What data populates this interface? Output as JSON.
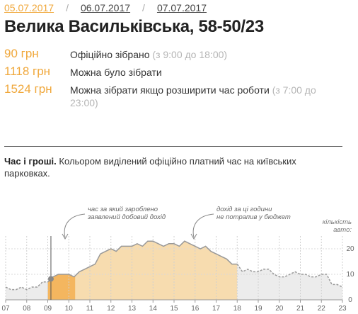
{
  "dates": {
    "active": "05.07.2017",
    "links": [
      "06.07.2017",
      "07.07.2017"
    ],
    "separator": "/"
  },
  "title": "Велика Васильківська, 58-50/23",
  "stats": [
    {
      "amount": "90 грн",
      "label": "Офіційно зібрано",
      "note": "(з 9:00 до 18:00)"
    },
    {
      "amount": "1118 грн",
      "label": "Можна було зібрати",
      "note": ""
    },
    {
      "amount": "1524 грн",
      "label": "Можна зібрати якщо розширити час роботи",
      "note": "(з 7:00 до 23:00)"
    }
  ],
  "caption": {
    "bold": "Час і гроші.",
    "text": "Кольором виділений офіційно платний час на київських парковках."
  },
  "colors": {
    "accent": "#f0a83c",
    "paid_fill": "#f7dcaf",
    "reported_fill": "#f4b65f",
    "offhours_fill": "#ececec",
    "line": "#999999"
  },
  "chart_data": {
    "type": "area",
    "x_ticks": [
      "07",
      "08",
      "09",
      "10",
      "11",
      "12",
      "13",
      "14",
      "15",
      "16",
      "17",
      "18",
      "19",
      "20",
      "21",
      "22",
      "23"
    ],
    "xlim": [
      7,
      23
    ],
    "y_ticks": [
      "20",
      "10",
      "0"
    ],
    "ylim": [
      0,
      25
    ],
    "ylabel_lines": [
      "кількість",
      "авто:"
    ],
    "paid_hours": [
      9,
      18
    ],
    "reported_hours": [
      9,
      10.3
    ],
    "cursor_hour": 9.15,
    "annotations": [
      {
        "lines": [
          "час за який зароблено",
          "заявлений добовий дохід"
        ]
      },
      {
        "lines": [
          "дохід за ці години",
          "не потрапив у бюджет"
        ]
      }
    ],
    "series": [
      {
        "x": [
          7.0,
          7.25,
          7.5,
          7.75,
          8.0,
          8.25,
          8.5,
          8.75,
          9.0,
          9.25,
          9.5,
          9.75,
          10.0,
          10.25,
          10.5,
          10.75,
          11.0,
          11.25,
          11.5,
          11.75,
          12.0,
          12.25,
          12.5,
          12.75,
          13.0,
          13.25,
          13.5,
          13.75,
          14.0,
          14.25,
          14.5,
          14.75,
          15.0,
          15.25,
          15.5,
          15.75,
          16.0,
          16.25,
          16.5,
          16.75,
          17.0,
          17.25,
          17.5,
          17.75,
          18.0,
          18.25,
          18.5,
          18.75,
          19.0,
          19.25,
          19.5,
          19.75,
          20.0,
          20.25,
          20.5,
          20.75,
          21.0,
          21.25,
          21.5,
          21.75,
          22.0,
          22.25,
          22.5,
          22.75,
          23.0
        ],
        "values": [
          5,
          4,
          4,
          5,
          4,
          5,
          5,
          7,
          7,
          9,
          10,
          10,
          10,
          9,
          11,
          12,
          13,
          14,
          18,
          19,
          20,
          19,
          21,
          21,
          21,
          22,
          21,
          23,
          23,
          22,
          21,
          22,
          22,
          21,
          23,
          22,
          21,
          20,
          21,
          19,
          18,
          17,
          16,
          14,
          14,
          11,
          12,
          11,
          11,
          12,
          12,
          10,
          9,
          9,
          10,
          11,
          10,
          10,
          9,
          9,
          10,
          10,
          6,
          6,
          5
        ]
      }
    ]
  }
}
